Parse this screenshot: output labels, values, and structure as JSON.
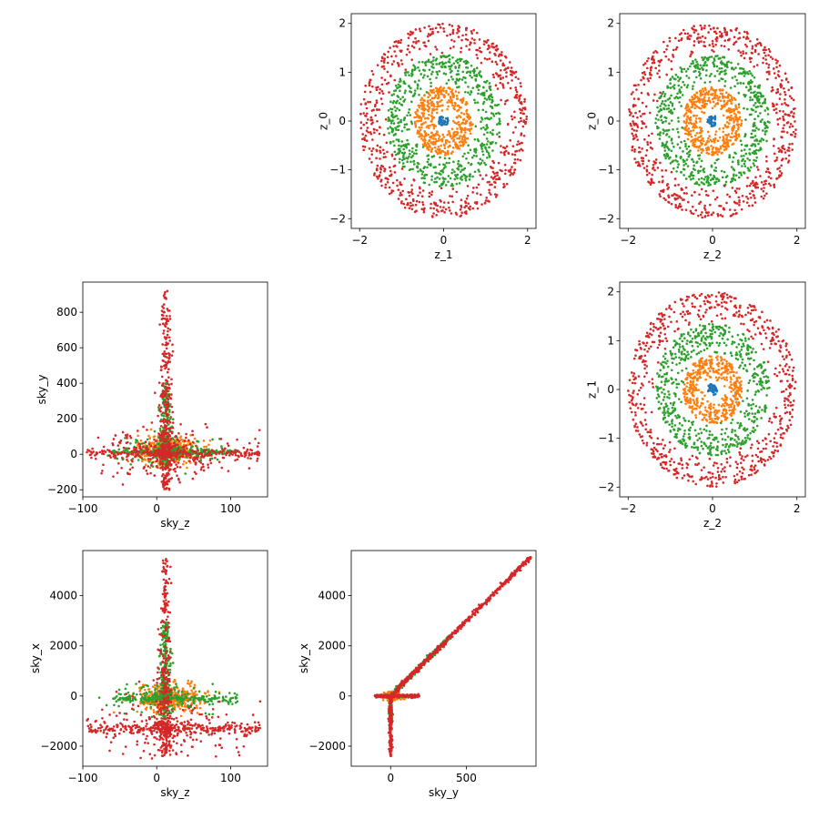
{
  "figure": {
    "series_colors": [
      "#1f77b4",
      "#ff7f0e",
      "#2ca02c",
      "#d62728"
    ]
  },
  "chart_data": [
    {
      "type": "scatter",
      "x_var": "z_1",
      "y_var": "z_0",
      "xlabel": "z_1",
      "ylabel": "z_0",
      "xlim": [
        -2.2,
        2.2
      ],
      "ylim": [
        -2.2,
        2.2
      ],
      "xticks": [
        -2,
        0,
        2
      ],
      "yticks": [
        -2,
        -1,
        0,
        1,
        2
      ],
      "grid": false,
      "series": [
        {
          "color": "#1f77b4",
          "shape": "ring",
          "radius_min": 0.0,
          "radius_max": 0.12,
          "count": 40
        },
        {
          "color": "#ff7f0e",
          "shape": "ring",
          "radius_min": 0.2,
          "radius_max": 0.7,
          "count": 450
        },
        {
          "color": "#2ca02c",
          "shape": "ring",
          "radius_min": 0.7,
          "radius_max": 1.35,
          "count": 600
        },
        {
          "color": "#d62728",
          "shape": "ring",
          "radius_min": 1.35,
          "radius_max": 2.0,
          "count": 650
        }
      ]
    },
    {
      "type": "scatter",
      "x_var": "z_2",
      "y_var": "z_0",
      "xlabel": "z_2",
      "ylabel": "z_0",
      "xlim": [
        -2.2,
        2.2
      ],
      "ylim": [
        -2.2,
        2.2
      ],
      "xticks": [
        -2,
        0,
        2
      ],
      "yticks": [
        -2,
        -1,
        0,
        1,
        2
      ],
      "grid": false,
      "series": [
        {
          "color": "#1f77b4",
          "shape": "ring",
          "radius_min": 0.0,
          "radius_max": 0.12,
          "count": 40
        },
        {
          "color": "#ff7f0e",
          "shape": "ring",
          "radius_min": 0.2,
          "radius_max": 0.7,
          "count": 450
        },
        {
          "color": "#2ca02c",
          "shape": "ring",
          "radius_min": 0.7,
          "radius_max": 1.35,
          "count": 600
        },
        {
          "color": "#d62728",
          "shape": "ring",
          "radius_min": 1.35,
          "radius_max": 2.0,
          "count": 650
        }
      ]
    },
    {
      "type": "scatter",
      "x_var": "sky_z",
      "y_var": "sky_y",
      "xlabel": "sky_z",
      "ylabel": "sky_y",
      "xlim": [
        -100,
        150
      ],
      "ylim": [
        -240,
        970
      ],
      "xticks": [
        -100,
        0,
        100
      ],
      "yticks": [
        -200,
        0,
        200,
        400,
        600,
        800
      ],
      "grid": false,
      "series": [
        {
          "color": "#1f77b4",
          "shape": "blob",
          "x_center": 12,
          "x_spread": 4,
          "y_center": 10,
          "y_spread": 15,
          "count": 30
        },
        {
          "color": "#ff7f0e",
          "shape": "blob",
          "x_center": 15,
          "x_spread": 20,
          "y_center": 30,
          "y_spread": 40,
          "count": 400
        },
        {
          "color": "#2ca02c",
          "shape": "cross",
          "x_center": 12,
          "x_range": [
            -60,
            110
          ],
          "y_center": 10,
          "y_range": [
            -80,
            400
          ],
          "count": 600
        },
        {
          "color": "#d62728",
          "shape": "cross",
          "x_center": 12,
          "x_range": [
            -95,
            140
          ],
          "y_center": 5,
          "y_range": [
            -200,
            920
          ],
          "count": 800
        }
      ]
    },
    {
      "type": "scatter",
      "x_var": "z_2",
      "y_var": "z_1",
      "xlabel": "z_2",
      "ylabel": "z_1",
      "xlim": [
        -2.2,
        2.2
      ],
      "ylim": [
        -2.2,
        2.2
      ],
      "xticks": [
        -2,
        0,
        2
      ],
      "yticks": [
        -2,
        -1,
        0,
        1,
        2
      ],
      "grid": false,
      "series": [
        {
          "color": "#1f77b4",
          "shape": "ring",
          "radius_min": 0.0,
          "radius_max": 0.12,
          "count": 40
        },
        {
          "color": "#ff7f0e",
          "shape": "ring",
          "radius_min": 0.2,
          "radius_max": 0.7,
          "count": 450
        },
        {
          "color": "#2ca02c",
          "shape": "ring",
          "radius_min": 0.7,
          "radius_max": 1.35,
          "count": 600
        },
        {
          "color": "#d62728",
          "shape": "ring",
          "radius_min": 1.35,
          "radius_max": 2.0,
          "count": 650
        }
      ]
    },
    {
      "type": "scatter",
      "x_var": "sky_z",
      "y_var": "sky_x",
      "xlabel": "sky_z",
      "ylabel": "sky_x",
      "xlim": [
        -100,
        150
      ],
      "ylim": [
        -2800,
        5800
      ],
      "xticks": [
        -100,
        0,
        100
      ],
      "yticks": [
        -2000,
        0,
        2000,
        4000
      ],
      "grid": false,
      "series": [
        {
          "color": "#1f77b4",
          "shape": "blob",
          "x_center": 12,
          "x_spread": 4,
          "y_center": 0,
          "y_spread": 80,
          "count": 30
        },
        {
          "color": "#ff7f0e",
          "shape": "blob",
          "x_center": 20,
          "x_spread": 22,
          "y_center": -100,
          "y_spread": 250,
          "count": 400
        },
        {
          "color": "#2ca02c",
          "shape": "cross",
          "x_center": 12,
          "x_range": [
            -60,
            110
          ],
          "y_center": -100,
          "y_range": [
            -1200,
            3000
          ],
          "count": 600
        },
        {
          "color": "#d62728",
          "shape": "cross",
          "x_center": 12,
          "x_range": [
            -95,
            140
          ],
          "y_center": -1300,
          "y_range": [
            -2400,
            5500
          ],
          "count": 800
        }
      ]
    },
    {
      "type": "scatter",
      "x_var": "sky_y",
      "y_var": "sky_x",
      "xlabel": "sky_y",
      "ylabel": "sky_x",
      "xlim": [
        -260,
        960
      ],
      "ylim": [
        -2800,
        5800
      ],
      "xticks": [
        0,
        500
      ],
      "yticks": [
        -2000,
        0,
        2000,
        4000
      ],
      "grid": false,
      "series": [
        {
          "color": "#1f77b4",
          "shape": "blob",
          "x_center": 0,
          "x_spread": 8,
          "y_center": 0,
          "y_spread": 60,
          "count": 30
        },
        {
          "color": "#ff7f0e",
          "shape": "blob",
          "x_center": 10,
          "x_spread": 25,
          "y_center": 0,
          "y_spread": 80,
          "count": 300
        },
        {
          "color": "#2ca02c",
          "shape": "tee",
          "x_range": [
            -200,
            400
          ],
          "y_range": [
            -1000,
            2000
          ],
          "slope": 6.0,
          "count": 500
        },
        {
          "color": "#d62728",
          "shape": "tee",
          "x_range": [
            -210,
            920
          ],
          "y_range": [
            -2400,
            5500
          ],
          "slope": 6.0,
          "count": 900
        }
      ]
    }
  ]
}
